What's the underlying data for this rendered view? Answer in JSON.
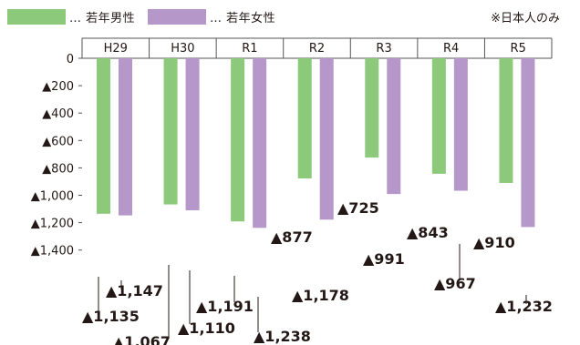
{
  "legend": {
    "male_label": "… 若年男性",
    "female_label": "… 若年女性",
    "note": "※日本人のみ"
  },
  "colors": {
    "male": "#8cc97a",
    "female": "#b598c9",
    "axis": "#555555"
  },
  "chart_data": {
    "type": "bar",
    "categories": [
      "H29",
      "H30",
      "R1",
      "R2",
      "R3",
      "R4",
      "R5"
    ],
    "series": [
      {
        "name": "若年男性",
        "values": [
          -1135,
          -1067,
          -1191,
          -877,
          -725,
          -843,
          -910
        ]
      },
      {
        "name": "若年女性",
        "values": [
          -1147,
          -1110,
          -1238,
          -1178,
          -991,
          -967,
          -1232
        ]
      }
    ],
    "data_labels": {
      "male": [
        "▲1,135",
        "▲1,067",
        "▲1,191",
        "▲877",
        "▲725",
        "▲843",
        "▲910"
      ],
      "female": [
        "▲1,147",
        "▲1,110",
        "▲1,238",
        "▲1,178",
        "▲991",
        "▲967",
        "▲1,232"
      ]
    },
    "yticks": [
      0,
      -200,
      -400,
      -600,
      -800,
      -1000,
      -1200,
      -1400
    ],
    "ytick_labels": [
      "0",
      "▲200",
      "▲400",
      "▲600",
      "▲800",
      "▲1,000",
      "▲1,200",
      "▲1,400"
    ],
    "ylim": [
      -1400,
      0
    ],
    "title": "",
    "xlabel": "",
    "ylabel": "",
    "legend_position": "top-left",
    "grid": false
  }
}
